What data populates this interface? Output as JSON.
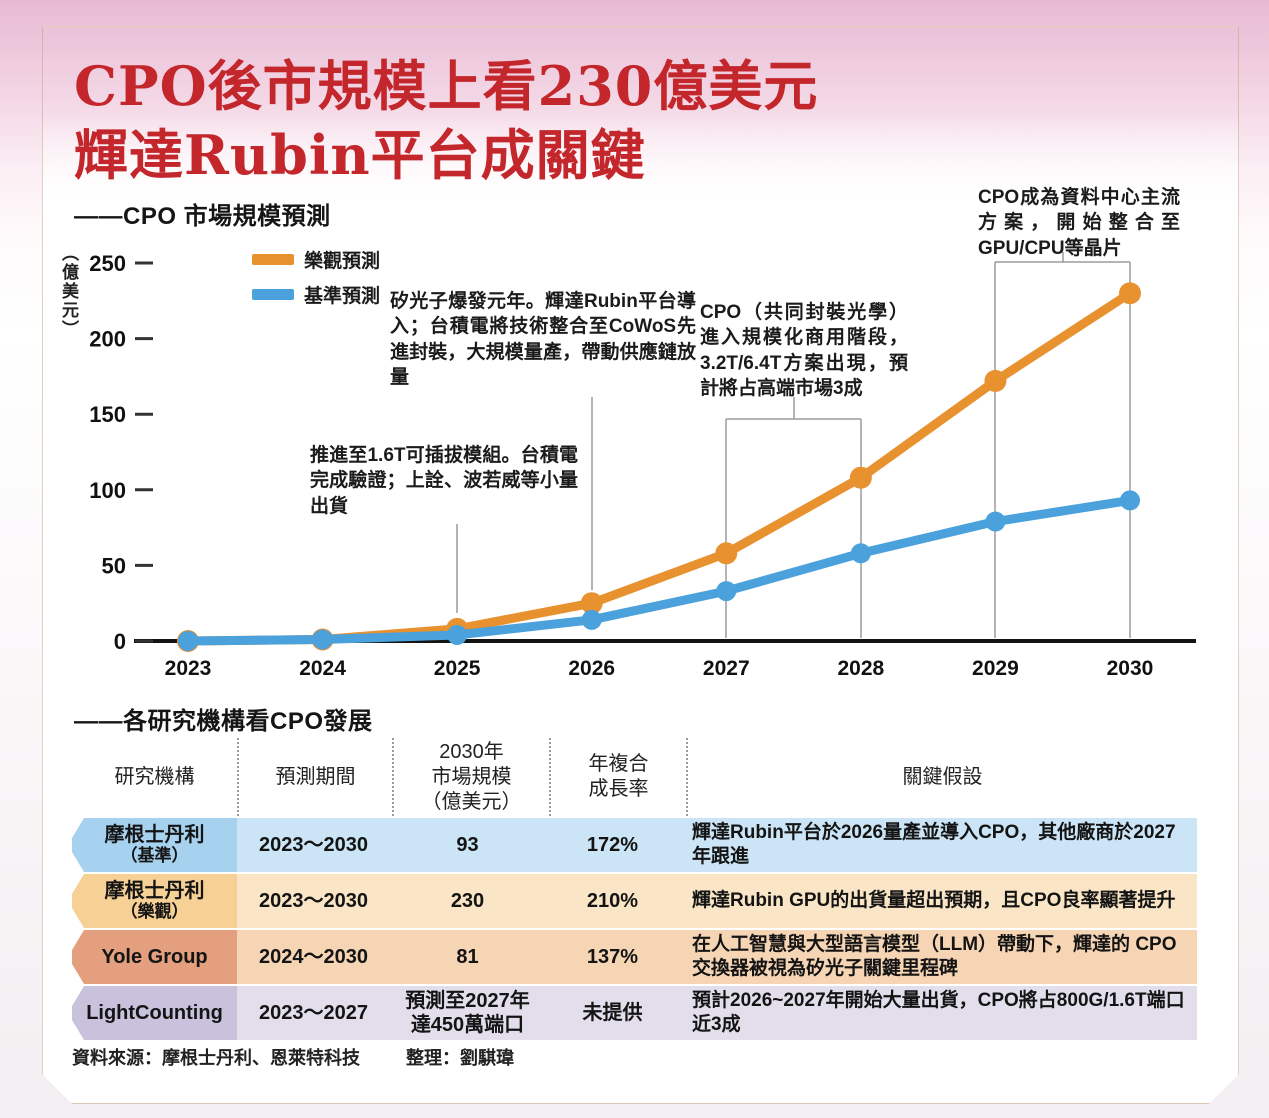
{
  "title": {
    "line1": "CPO後市規模上看230億美元",
    "line2": "輝達Rubin平台成關鍵"
  },
  "colors": {
    "title_red": "#c3262b",
    "optimistic_orange": "#E8912F",
    "base_blue": "#4AA1DC"
  },
  "chart": {
    "section_title": "——CPO 市場規模預測",
    "unit_label": "（億美元）"
  },
  "chart_data": {
    "type": "line",
    "title": "CPO 市場規模預測",
    "ylabel": "億美元",
    "x": [
      2023,
      2024,
      2025,
      2026,
      2027,
      2028,
      2029,
      2030
    ],
    "series": [
      {
        "name": "樂觀預測",
        "color": "#E8912F",
        "values": [
          0,
          1,
          8,
          25,
          58,
          108,
          172,
          230
        ]
      },
      {
        "name": "基準預測",
        "color": "#4AA1DC",
        "values": [
          0,
          1,
          4,
          14,
          33,
          58,
          79,
          93
        ]
      }
    ],
    "ylim": [
      0,
      250
    ],
    "yticks": [
      0,
      50,
      100,
      150,
      200,
      250
    ],
    "grid": false,
    "legend_position": "top-left",
    "annotations": [
      {
        "target": "2025",
        "text": "推進至1.6T可插拔模組。台積電完成驗證；上詮、波若威等小量出貨"
      },
      {
        "target": "2026",
        "text": "矽光子爆發元年。輝達Rubin平台導入；台積電將技術整合至CoWoS先進封裝，大規模量產，帶動供應鏈放量"
      },
      {
        "target": "2027-2028",
        "text": "CPO（共同封裝光學）進入規模化商用階段，3.2T/6.4T方案出現，預計將占高端市場3成"
      },
      {
        "target": "2029-2030",
        "text": "CPO成為資料中心主流方案，開始整合至GPU/CPU等晶片"
      }
    ]
  },
  "table": {
    "section_title": "——各研究機構看CPO發展",
    "headers": [
      "研究機構",
      "預測期間",
      "2030年\n市場規模\n（億美元）",
      "年複合\n成長率",
      "關鍵假設"
    ],
    "rows": [
      {
        "org": "摩根士丹利",
        "org_sub": "（基準）",
        "period": "2023～2030",
        "size_2030": "93",
        "cagr": "172%",
        "assumption": "輝達Rubin平台於2026量產並導入CPO，其他廠商於2027年跟進",
        "label_color": "#A6D1EF",
        "body_color": "#CBE5F6"
      },
      {
        "org": "摩根士丹利",
        "org_sub": "（樂觀）",
        "period": "2023～2030",
        "size_2030": "230",
        "cagr": "210%",
        "assumption": "輝達Rubin GPU的出貨量超出預期，且CPO良率顯著提升",
        "label_color": "#F6D094",
        "body_color": "#FAE6C6"
      },
      {
        "org": "Yole Group",
        "org_sub": "",
        "period": "2024～2030",
        "size_2030": "81",
        "cagr": "137%",
        "assumption": "在人工智慧與大型語言模型（LLM）帶動下，輝達的 CPO 交換器被視為矽光子關鍵里程碑",
        "label_color": "#E39F7E",
        "body_color": "#F6D5B5"
      },
      {
        "org": "LightCounting",
        "org_sub": "",
        "period": "2023～2027",
        "size_2030": "預測至2027年\n達450萬端口",
        "cagr": "未提供",
        "assumption": "預計2026~2027年開始大量出貨，CPO將占800G/1.6T端口近3成",
        "label_color": "#C9C2DC",
        "body_color": "#E2DEEB"
      }
    ]
  },
  "footer": {
    "source": "資料來源：摩根士丹利、恩萊特科技",
    "editor": "整理：劉騏瑋"
  }
}
